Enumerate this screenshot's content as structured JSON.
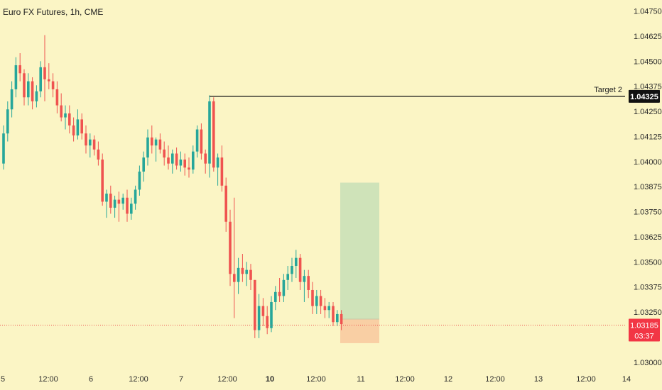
{
  "title": "Euro FX Futures, 1h, CME",
  "colors": {
    "background": "#fbf5c5",
    "up": "#26a69a",
    "down": "#ef5350",
    "target_line": "#111111",
    "price_badge": "#f23645",
    "profit_zone": "#cfe3b9",
    "loss_zone": "#f9cfa4"
  },
  "chart_data": {
    "type": "candlestick",
    "title": "Euro FX Futures, 1h, CME",
    "y_axis": {
      "range": [
        1.0295,
        1.04805
      ],
      "ticks": [
        "1.04750",
        "1.04625",
        "1.04500",
        "1.04375",
        "1.04250",
        "1.04125",
        "1.04000",
        "1.03875",
        "1.03750",
        "1.03625",
        "1.03500",
        "1.03375",
        "1.03250",
        "1.03000"
      ]
    },
    "x_axis": {
      "ticks": [
        {
          "label": "5",
          "bold": false
        },
        {
          "label": "12:00",
          "bold": false
        },
        {
          "label": "6",
          "bold": false
        },
        {
          "label": "12:00",
          "bold": false
        },
        {
          "label": "7",
          "bold": false
        },
        {
          "label": "12:00",
          "bold": false
        },
        {
          "label": "10",
          "bold": true
        },
        {
          "label": "12:00",
          "bold": false
        },
        {
          "label": "11",
          "bold": false
        },
        {
          "label": "12:00",
          "bold": false
        },
        {
          "label": "12",
          "bold": false
        },
        {
          "label": "12:00",
          "bold": false
        },
        {
          "label": "13",
          "bold": false
        },
        {
          "label": "12:00",
          "bold": false
        },
        {
          "label": "14",
          "bold": false
        }
      ]
    },
    "candles_ohlc": [
      [
        1.0399,
        1.0418,
        1.0396,
        1.0414
      ],
      [
        1.0414,
        1.043,
        1.041,
        1.0426
      ],
      [
        1.0426,
        1.044,
        1.0422,
        1.0436
      ],
      [
        1.0436,
        1.0452,
        1.0432,
        1.0448
      ],
      [
        1.0448,
        1.0454,
        1.044,
        1.0444
      ],
      [
        1.0444,
        1.0446,
        1.0428,
        1.0432
      ],
      [
        1.0432,
        1.0444,
        1.0428,
        1.044
      ],
      [
        1.044,
        1.0442,
        1.0426,
        1.043
      ],
      [
        1.043,
        1.0438,
        1.0427,
        1.0435
      ],
      [
        1.0435,
        1.045,
        1.0432,
        1.0447
      ],
      [
        1.0447,
        1.0463,
        1.043,
        1.0441
      ],
      [
        1.0441,
        1.0449,
        1.0436,
        1.044
      ],
      [
        1.044,
        1.0444,
        1.0432,
        1.0436
      ],
      [
        1.0436,
        1.044,
        1.0424,
        1.0428
      ],
      [
        1.0428,
        1.0434,
        1.042,
        1.0422
      ],
      [
        1.0422,
        1.0428,
        1.0416,
        1.0424
      ],
      [
        1.0424,
        1.0428,
        1.0414,
        1.0418
      ],
      [
        1.0418,
        1.0422,
        1.041,
        1.0413
      ],
      [
        1.0413,
        1.0426,
        1.0411,
        1.0421
      ],
      [
        1.0421,
        1.0424,
        1.0411,
        1.0414
      ],
      [
        1.0414,
        1.0418,
        1.0404,
        1.0408
      ],
      [
        1.0408,
        1.0414,
        1.0402,
        1.0411
      ],
      [
        1.0411,
        1.0413,
        1.0403,
        1.0406
      ],
      [
        1.0406,
        1.041,
        1.0398,
        1.0401
      ],
      [
        1.0401,
        1.0404,
        1.0378,
        1.038
      ],
      [
        1.038,
        1.0386,
        1.0372,
        1.0384
      ],
      [
        1.0384,
        1.0388,
        1.0374,
        1.0377
      ],
      [
        1.0377,
        1.0383,
        1.0372,
        1.0381
      ],
      [
        1.0381,
        1.0385,
        1.037,
        1.0379
      ],
      [
        1.0379,
        1.0384,
        1.0376,
        1.0382
      ],
      [
        1.0382,
        1.0386,
        1.037,
        1.0374
      ],
      [
        1.0374,
        1.0382,
        1.0371,
        1.0379
      ],
      [
        1.0379,
        1.0388,
        1.0376,
        1.0386
      ],
      [
        1.0386,
        1.0398,
        1.0383,
        1.0395
      ],
      [
        1.0395,
        1.0405,
        1.039,
        1.0402
      ],
      [
        1.0402,
        1.0416,
        1.0398,
        1.0412
      ],
      [
        1.0412,
        1.0418,
        1.0404,
        1.0408
      ],
      [
        1.0408,
        1.0412,
        1.04,
        1.0411
      ],
      [
        1.0411,
        1.0414,
        1.0404,
        1.0406
      ],
      [
        1.0406,
        1.041,
        1.0398,
        1.0402
      ],
      [
        1.0402,
        1.0408,
        1.0396,
        1.0399
      ],
      [
        1.0399,
        1.0406,
        1.0394,
        1.0404
      ],
      [
        1.0404,
        1.0407,
        1.0396,
        1.0398
      ],
      [
        1.0398,
        1.0405,
        1.0395,
        1.0401
      ],
      [
        1.0401,
        1.0404,
        1.0393,
        1.0397
      ],
      [
        1.0397,
        1.0402,
        1.0392,
        1.0396
      ],
      [
        1.0396,
        1.0408,
        1.0394,
        1.0405
      ],
      [
        1.0405,
        1.0418,
        1.0402,
        1.0416
      ],
      [
        1.0416,
        1.0419,
        1.0401,
        1.0404
      ],
      [
        1.0404,
        1.0406,
        1.0394,
        1.0399
      ],
      [
        1.0399,
        1.0433,
        1.0392,
        1.043
      ],
      [
        1.043,
        1.0432,
        1.0395,
        1.0397
      ],
      [
        1.0397,
        1.0404,
        1.0388,
        1.0402
      ],
      [
        1.0402,
        1.0408,
        1.0385,
        1.0388
      ],
      [
        1.0388,
        1.0392,
        1.0365,
        1.037
      ],
      [
        1.037,
        1.0376,
        1.0338,
        1.0344
      ],
      [
        1.0344,
        1.0382,
        1.0322,
        1.034
      ],
      [
        1.034,
        1.0352,
        1.0334,
        1.0347
      ],
      [
        1.0347,
        1.0354,
        1.034,
        1.0344
      ],
      [
        1.0344,
        1.035,
        1.0338,
        1.0346
      ],
      [
        1.0346,
        1.0349,
        1.0336,
        1.0341
      ],
      [
        1.0341,
        1.0341,
        1.0312,
        1.0316
      ],
      [
        1.0316,
        1.0334,
        1.0312,
        1.0328
      ],
      [
        1.0328,
        1.0332,
        1.0318,
        1.0323
      ],
      [
        1.0323,
        1.0328,
        1.0314,
        1.0317
      ],
      [
        1.0317,
        1.0333,
        1.0315,
        1.033
      ],
      [
        1.033,
        1.0338,
        1.0326,
        1.0335
      ],
      [
        1.0335,
        1.0342,
        1.033,
        1.0333
      ],
      [
        1.0333,
        1.0344,
        1.033,
        1.0341
      ],
      [
        1.0341,
        1.0348,
        1.0336,
        1.0344
      ],
      [
        1.0344,
        1.0352,
        1.034,
        1.0348
      ],
      [
        1.0348,
        1.0356,
        1.0342,
        1.0352
      ],
      [
        1.0352,
        1.0354,
        1.0336,
        1.034
      ],
      [
        1.034,
        1.0346,
        1.033,
        1.0343
      ],
      [
        1.0343,
        1.0346,
        1.0332,
        1.0336
      ],
      [
        1.0336,
        1.034,
        1.0324,
        1.0328
      ],
      [
        1.0328,
        1.0336,
        1.0324,
        1.0333
      ],
      [
        1.0333,
        1.0336,
        1.0324,
        1.0328
      ],
      [
        1.0328,
        1.0332,
        1.0322,
        1.0326
      ],
      [
        1.0326,
        1.033,
        1.0322,
        1.0328
      ],
      [
        1.0328,
        1.033,
        1.0318,
        1.032
      ],
      [
        1.032,
        1.0326,
        1.0318,
        1.0324
      ],
      [
        1.0324,
        1.0326,
        1.0316,
        1.0319
      ]
    ],
    "horizontal_line": {
      "label": "Target 2",
      "value": 1.04325,
      "value_label": "1.04325"
    },
    "current_price": {
      "value": 1.03185,
      "value_label": "1.03185",
      "countdown": "03:37"
    },
    "position_tool": {
      "entry": 1.03215,
      "target": 1.03895,
      "stop": 1.03095
    }
  }
}
